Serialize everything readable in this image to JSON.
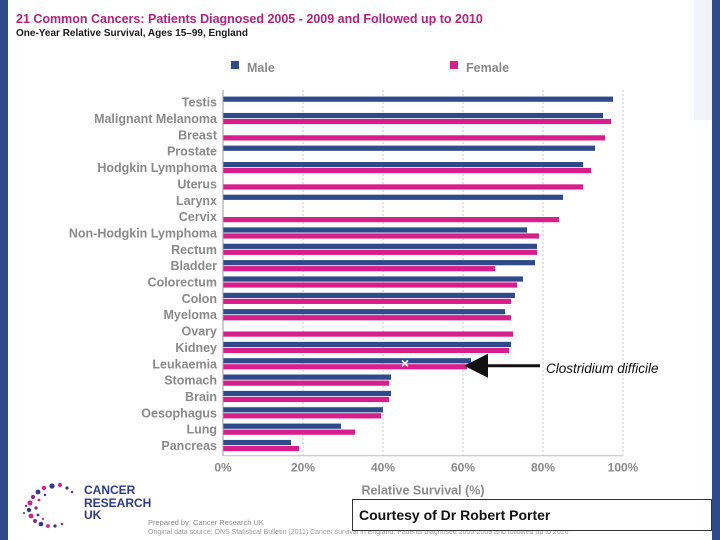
{
  "header": {
    "title": "21 Common Cancers: Patients Diagnosed 2005 - 2009 and Followed up to 2010",
    "subtitle": "One-Year Relative Survival, Ages 15–99, England"
  },
  "chart_data": {
    "type": "bar",
    "orientation": "horizontal",
    "categories": [
      "Testis",
      "Malignant Melanoma",
      "Breast",
      "Prostate",
      "Hodgkin Lymphoma",
      "Uterus",
      "Larynx",
      "Cervix",
      "Non-Hodgkin Lymphoma",
      "Rectum",
      "Bladder",
      "Colorectum",
      "Colon",
      "Myeloma",
      "Ovary",
      "Kidney",
      "Leukaemia",
      "Stomach",
      "Brain",
      "Oesophagus",
      "Lung",
      "Pancreas"
    ],
    "series": [
      {
        "name": "Male",
        "color": "#2e4a8b",
        "values": [
          97.5,
          95,
          null,
          93,
          90,
          null,
          85,
          null,
          76,
          78.5,
          78,
          75,
          73,
          70.5,
          null,
          72,
          62,
          42,
          42,
          40,
          29.5,
          17
        ]
      },
      {
        "name": "Female",
        "color": "#d81e8a",
        "values": [
          null,
          97,
          95.5,
          null,
          92,
          90,
          null,
          84,
          79,
          78.5,
          68,
          73.5,
          72,
          72,
          72.5,
          71.5,
          61,
          41.5,
          41.5,
          39.5,
          33,
          19
        ]
      }
    ],
    "xlabel": "Relative Survival (%)",
    "xlim": [
      0,
      100
    ],
    "xticks": [
      "0%",
      "20%",
      "40%",
      "60%",
      "80%",
      "100%"
    ],
    "grid": true,
    "legend_position": "top"
  },
  "annotation": {
    "label": "Clostridium difficile",
    "marker": "×",
    "target_category": "Leukaemia"
  },
  "footer": {
    "logo_lines": [
      "CANCER",
      "RESEARCH",
      "UK"
    ],
    "prepared_by": "Prepared by: Cancer Research UK",
    "original_source": "Original data source: ONS Statistical Bulletin (2011) Cancer survival in England: Patients diagnosed 2005-2009 and followed up to 2010",
    "courtesy": "Courtesy of Dr Robert Porter"
  }
}
